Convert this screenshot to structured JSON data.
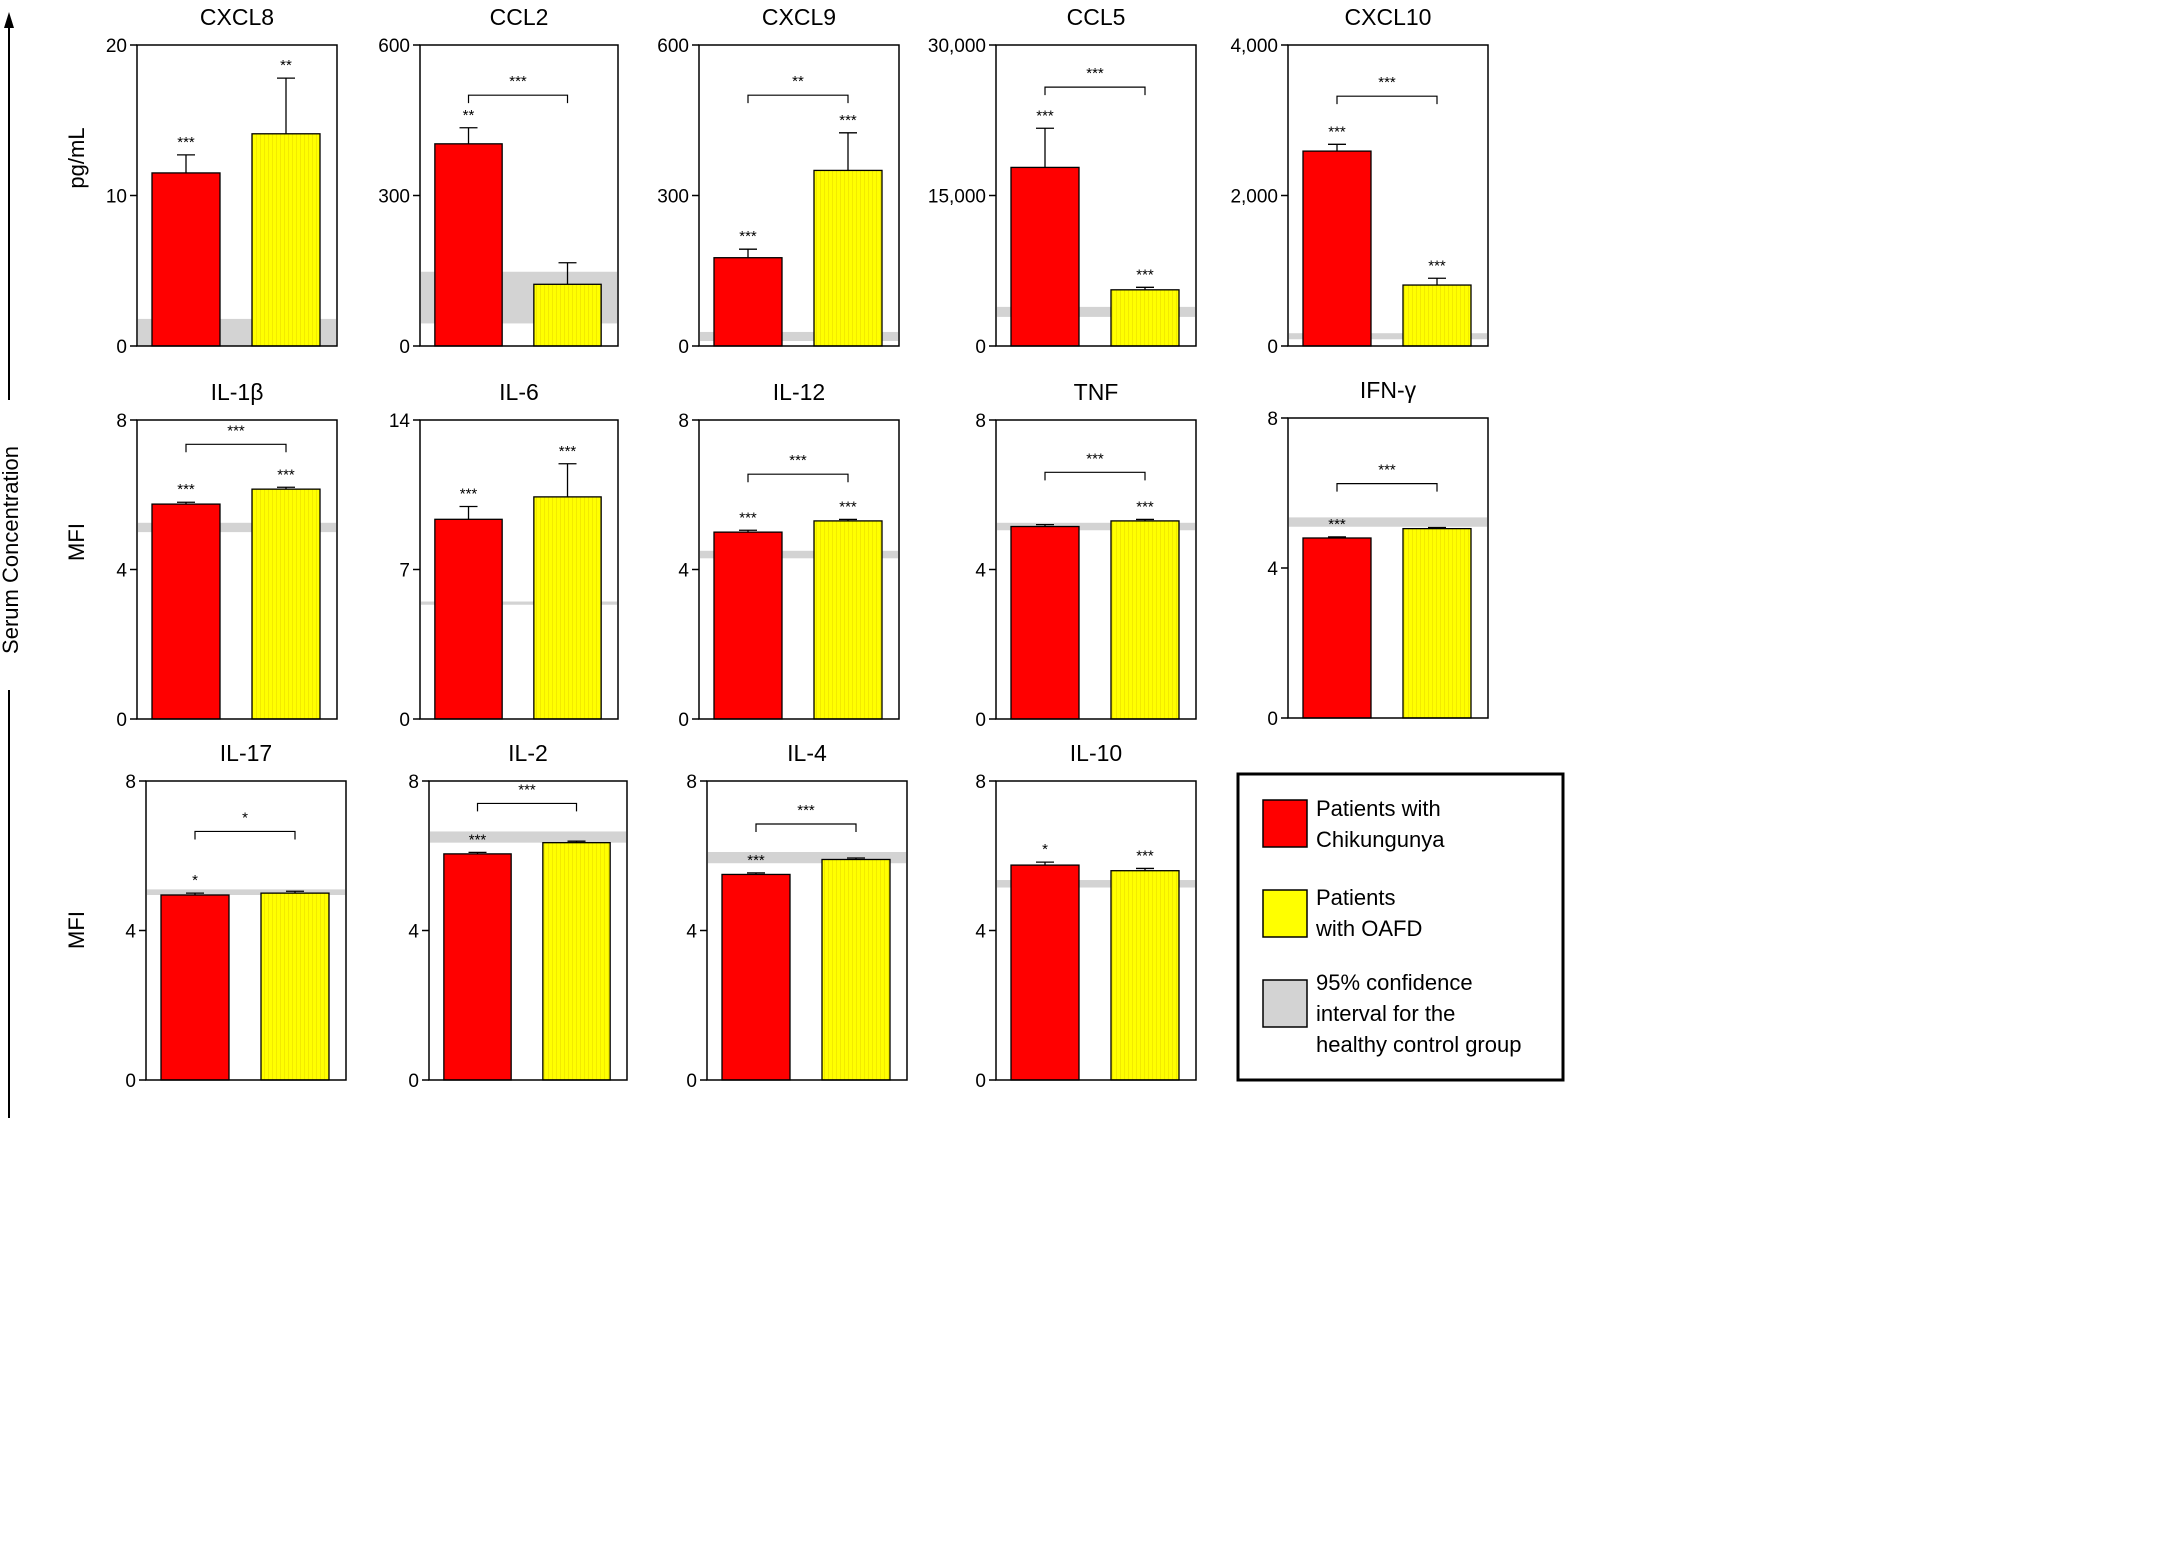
{
  "figure": {
    "y_axis_title": "Serum Concentration",
    "row_unit_labels": [
      "pg/mL",
      "MFI",
      "MFI"
    ],
    "colors": {
      "chikungunya": "#ff0000",
      "oafd": "#ffff00",
      "ci_band": "#d3d3d3",
      "axis": "#000000"
    }
  },
  "legend": {
    "items": [
      {
        "lines": [
          "Patients with",
          "Chikungunya"
        ],
        "color": "#ff0000"
      },
      {
        "lines": [
          "Patients",
          "with OAFD"
        ],
        "color": "#ffff00"
      },
      {
        "lines": [
          "95% confidence",
          "interval for the",
          "healthy control group"
        ],
        "color": "#d3d3d3"
      }
    ]
  },
  "chart_data": [
    {
      "type": "bar",
      "title": "CXCL8",
      "categories": [
        "Patients with Chikungunya",
        "Patients with OAFD"
      ],
      "values": [
        11.5,
        14.1
      ],
      "errors": [
        1.2,
        3.7
      ],
      "ylim": [
        0,
        20
      ],
      "yticks": [
        0,
        10,
        20
      ],
      "ytick_labels": [
        "0",
        "10",
        "20"
      ],
      "ci_band": [
        0,
        1.8
      ],
      "bar_labels": [
        "***",
        "**"
      ],
      "bracket": null
    },
    {
      "type": "bar",
      "title": "CCL2",
      "categories": [
        "Patients with Chikungunya",
        "Patients with OAFD"
      ],
      "values": [
        403,
        123
      ],
      "errors": [
        32,
        43
      ],
      "ylim": [
        0,
        600
      ],
      "yticks": [
        0,
        300,
        600
      ],
      "ytick_labels": [
        "0",
        "300",
        "600"
      ],
      "ci_band": [
        45,
        148
      ],
      "bar_labels": [
        "**",
        ""
      ],
      "bracket": {
        "label": "***",
        "y": 500
      }
    },
    {
      "type": "bar",
      "title": "CXCL9",
      "categories": [
        "Patients with Chikungunya",
        "Patients with OAFD"
      ],
      "values": [
        176,
        350
      ],
      "errors": [
        17,
        75
      ],
      "ylim": [
        0,
        600
      ],
      "yticks": [
        0,
        300,
        600
      ],
      "ytick_labels": [
        "0",
        "300",
        "600"
      ],
      "ci_band": [
        10,
        28
      ],
      "bar_labels": [
        "***",
        "***"
      ],
      "bracket": {
        "label": "**",
        "y": 500
      }
    },
    {
      "type": "bar",
      "title": "CCL5",
      "categories": [
        "Patients with Chikungunya",
        "Patients with OAFD"
      ],
      "values": [
        17800,
        5600
      ],
      "errors": [
        3900,
        250
      ],
      "ylim": [
        0,
        30000
      ],
      "yticks": [
        0,
        15000,
        30000
      ],
      "ytick_labels": [
        "0",
        "15,000",
        "30,000"
      ],
      "ci_band": [
        2900,
        3900
      ],
      "bar_labels": [
        "***",
        "***"
      ],
      "bracket": {
        "label": "***",
        "y": 25800
      }
    },
    {
      "type": "bar",
      "title": "CXCL10",
      "categories": [
        "Patients with Chikungunya",
        "Patients with OAFD"
      ],
      "values": [
        2590,
        810
      ],
      "errors": [
        90,
        90
      ],
      "ylim": [
        0,
        4000
      ],
      "yticks": [
        0,
        2000,
        4000
      ],
      "ytick_labels": [
        "0",
        "2,000",
        "4,000"
      ],
      "ci_band": [
        90,
        170
      ],
      "bar_labels": [
        "***",
        "***"
      ],
      "bracket": {
        "label": "***",
        "y": 3320
      }
    },
    {
      "type": "bar",
      "title": "IL-1β",
      "categories": [
        "Patients with Chikungunya",
        "Patients with OAFD"
      ],
      "values": [
        5.75,
        6.15
      ],
      "errors": [
        0.05,
        0.05
      ],
      "ylim": [
        0,
        8
      ],
      "yticks": [
        0,
        4,
        8
      ],
      "ytick_labels": [
        "0",
        "4",
        "8"
      ],
      "ci_band": [
        5.0,
        5.25
      ],
      "bar_labels": [
        "***",
        "***"
      ],
      "bracket": {
        "label": "***",
        "y": 7.35
      }
    },
    {
      "type": "bar",
      "title": "IL-6",
      "categories": [
        "Patients with Chikungunya",
        "Patients with OAFD"
      ],
      "values": [
        9.35,
        10.4
      ],
      "errors": [
        0.6,
        1.55
      ],
      "ylim": [
        0,
        14
      ],
      "yticks": [
        0,
        7,
        14
      ],
      "ytick_labels": [
        "0",
        "7",
        "14"
      ],
      "ci_band": [
        5.35,
        5.5
      ],
      "bar_labels": [
        "***",
        "***"
      ],
      "bracket": null
    },
    {
      "type": "bar",
      "title": "IL-12",
      "categories": [
        "Patients with Chikungunya",
        "Patients with OAFD"
      ],
      "values": [
        5.0,
        5.3
      ],
      "errors": [
        0.05,
        0.04
      ],
      "ylim": [
        0,
        8
      ],
      "yticks": [
        0,
        4,
        8
      ],
      "ytick_labels": [
        "0",
        "4",
        "8"
      ],
      "ci_band": [
        4.3,
        4.5
      ],
      "bar_labels": [
        "***",
        "***"
      ],
      "bracket": {
        "label": "***",
        "y": 6.55
      }
    },
    {
      "type": "bar",
      "title": "TNF",
      "categories": [
        "Patients with Chikungunya",
        "Patients with OAFD"
      ],
      "values": [
        5.15,
        5.3
      ],
      "errors": [
        0.05,
        0.04
      ],
      "ylim": [
        0,
        8
      ],
      "yticks": [
        0,
        4,
        8
      ],
      "ytick_labels": [
        "0",
        "4",
        "8"
      ],
      "ci_band": [
        5.05,
        5.25
      ],
      "bar_labels": [
        "",
        "***"
      ],
      "bracket": {
        "label": "***",
        "y": 6.6
      }
    },
    {
      "type": "bar",
      "title": "IFN-γ",
      "categories": [
        "Patients with Chikungunya",
        "Patients with OAFD"
      ],
      "values": [
        4.8,
        5.05
      ],
      "errors": [
        0.03,
        0.03
      ],
      "ylim": [
        0,
        8
      ],
      "yticks": [
        0,
        4,
        8
      ],
      "ytick_labels": [
        "0",
        "4",
        "8"
      ],
      "ci_band": [
        5.1,
        5.35
      ],
      "bar_labels": [
        "***",
        ""
      ],
      "bracket": {
        "label": "***",
        "y": 6.25
      }
    },
    {
      "type": "bar",
      "title": "IL-17",
      "categories": [
        "Patients with Chikungunya",
        "Patients with OAFD"
      ],
      "values": [
        4.95,
        5.0
      ],
      "errors": [
        0.05,
        0.05
      ],
      "ylim": [
        0,
        8
      ],
      "yticks": [
        0,
        4,
        8
      ],
      "ytick_labels": [
        "0",
        "4",
        "8"
      ],
      "ci_band": [
        4.95,
        5.1
      ],
      "bar_labels": [
        "*",
        ""
      ],
      "bracket": {
        "label": "*",
        "y": 6.65
      }
    },
    {
      "type": "bar",
      "title": "IL-2",
      "categories": [
        "Patients with Chikungunya",
        "Patients with OAFD"
      ],
      "values": [
        6.05,
        6.35
      ],
      "errors": [
        0.04,
        0.04
      ],
      "ylim": [
        0,
        8
      ],
      "yticks": [
        0,
        4,
        8
      ],
      "ytick_labels": [
        "0",
        "4",
        "8"
      ],
      "ci_band": [
        6.35,
        6.65
      ],
      "bar_labels": [
        "***",
        ""
      ],
      "bracket": {
        "label": "***",
        "y": 7.4
      }
    },
    {
      "type": "bar",
      "title": "IL-4",
      "categories": [
        "Patients with Chikungunya",
        "Patients with OAFD"
      ],
      "values": [
        5.5,
        5.9
      ],
      "errors": [
        0.04,
        0.04
      ],
      "ylim": [
        0,
        8
      ],
      "yticks": [
        0,
        4,
        8
      ],
      "ytick_labels": [
        "0",
        "4",
        "8"
      ],
      "ci_band": [
        5.8,
        6.1
      ],
      "bar_labels": [
        "***",
        ""
      ],
      "bracket": {
        "label": "***",
        "y": 6.85
      }
    },
    {
      "type": "bar",
      "title": "IL-10",
      "categories": [
        "Patients with Chikungunya",
        "Patients with OAFD"
      ],
      "values": [
        5.75,
        5.6
      ],
      "errors": [
        0.08,
        0.06
      ],
      "ylim": [
        0,
        8
      ],
      "yticks": [
        0,
        4,
        8
      ],
      "ytick_labels": [
        "0",
        "4",
        "8"
      ],
      "ci_band": [
        5.15,
        5.35
      ],
      "bar_labels": [
        "*",
        "***"
      ],
      "bracket": null
    }
  ]
}
